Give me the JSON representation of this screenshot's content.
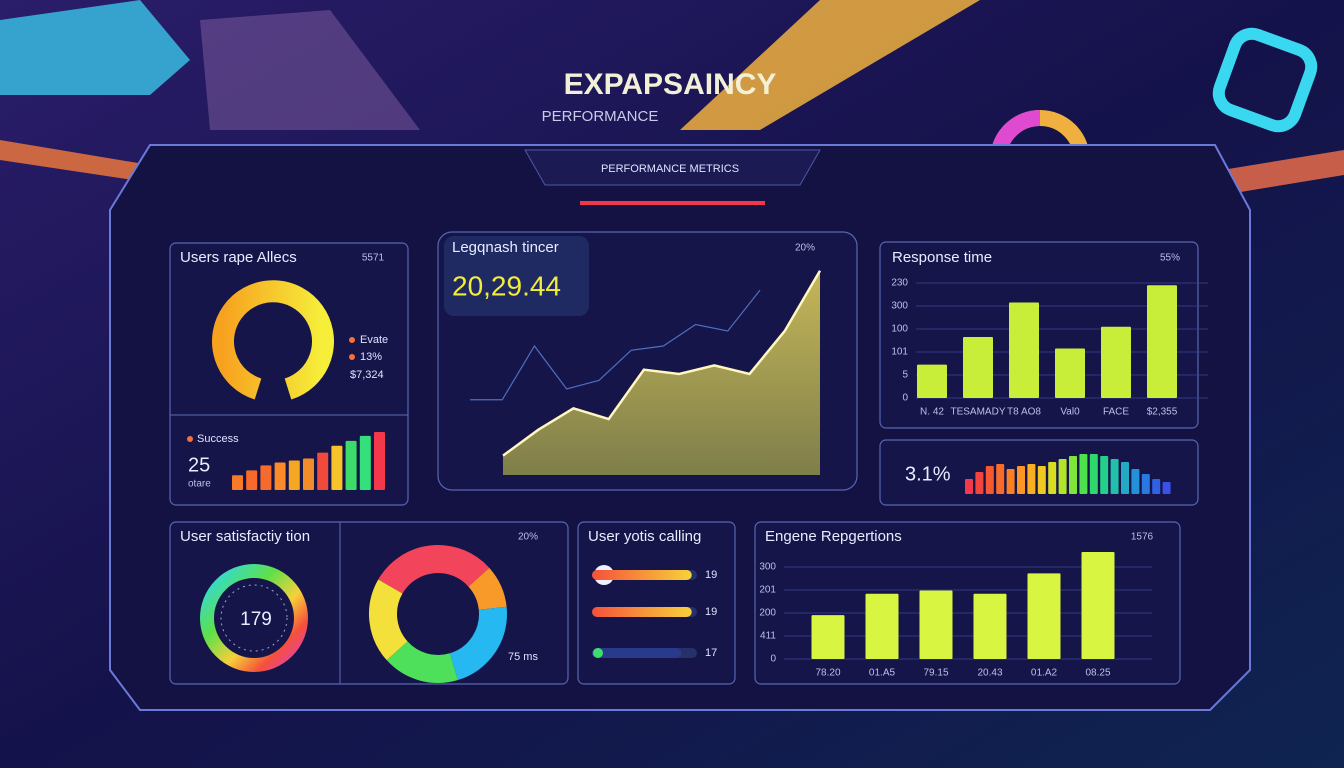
{
  "header": {
    "title": "EXPAPSAINCY",
    "subtitle": "PERFORMANCE",
    "tab": "PERFORMANCE METRICS"
  },
  "users_panel": {
    "title": "Users rape Allecs",
    "badge": "5571",
    "legend": [
      "Evate",
      "13%",
      "$7,324"
    ],
    "success_label": "Success",
    "success_value": "25",
    "success_caption": "otare",
    "bars": {
      "type": "bar",
      "values": [
        15,
        20,
        25,
        28,
        30,
        32,
        38,
        45,
        50,
        55,
        59
      ],
      "colors": [
        "#f57a2a",
        "#f8692a",
        "#f66a2c",
        "#fb8a2a",
        "#f5a623",
        "#f28c28",
        "#f04a3a",
        "#f7c32a",
        "#3ddc6a",
        "#34e07a",
        "#f2384a"
      ],
      "ylim": [
        0,
        60
      ]
    }
  },
  "trend_panel": {
    "title": "Legqnash tincer",
    "value": "20,29.44",
    "badge": "20%",
    "chart": {
      "type": "area",
      "ylim": [
        0,
        100
      ],
      "series": [
        {
          "color": "#d8c85a",
          "values": [
            9,
            21,
            31,
            26,
            49,
            47,
            51,
            47,
            67,
            95
          ]
        },
        {
          "color": "#4e6fc0",
          "values": [
            35,
            35,
            60,
            40,
            44,
            58,
            60,
            70,
            67,
            86
          ]
        }
      ]
    }
  },
  "response_panel": {
    "title": "Response time",
    "badge": "55%",
    "y_labels": [
      "230",
      "300",
      "100",
      "101",
      "5",
      "0"
    ],
    "chart": {
      "type": "bar",
      "categories": [
        "N. 42",
        "TESAMADY",
        "T8 AO8",
        "Val0",
        "FACE",
        "$2,355"
      ],
      "values": [
        29,
        53,
        83,
        43,
        62,
        98
      ],
      "color": "#c8ee3a",
      "ylim": [
        0,
        100
      ]
    }
  },
  "spark_panel": {
    "value": "3.1%",
    "chart": {
      "type": "bar",
      "values": [
        15,
        22,
        28,
        30,
        25,
        28,
        30,
        28,
        32,
        35,
        38,
        40,
        40,
        38,
        35,
        32,
        25,
        20,
        15,
        12
      ],
      "colors": [
        "#f23a4a",
        "#f5443e",
        "#f7582f",
        "#f96b2a",
        "#fa8026",
        "#fb9524",
        "#f8b022",
        "#f1c821",
        "#d8dc22",
        "#b2e52a",
        "#7fe53a",
        "#4fe04e",
        "#2fd86a",
        "#24cf8a",
        "#22c0aa",
        "#22aac4",
        "#2490d8",
        "#2a78e0",
        "#3060e4",
        "#3a50e6"
      ],
      "ylim": [
        0,
        40
      ]
    }
  },
  "satisfaction_panel": {
    "title": "User satisfactiy tion",
    "badge": "20%",
    "gauge_value": "179",
    "donut_caption": "75 ms",
    "donut": {
      "type": "pie",
      "values": [
        30,
        10,
        22,
        18,
        20
      ],
      "colors": [
        "#f2445a",
        "#f79a2a",
        "#26b8f0",
        "#4ee05a",
        "#f3e03a"
      ]
    }
  },
  "calling_panel": {
    "title": "User yotis calling",
    "chart": {
      "type": "bar",
      "values": [
        19,
        19,
        17
      ],
      "xlim": [
        0,
        20
      ]
    }
  },
  "engine_panel": {
    "title": "Engene Repgertions",
    "badge": "1576",
    "y_labels": [
      "300",
      "201",
      "200",
      "411",
      "0"
    ],
    "chart": {
      "type": "bar",
      "categories": [
        "78.20",
        "01.A5",
        "79.15",
        "20.43",
        "01.A2",
        "08.25"
      ],
      "values": [
        41,
        61,
        64,
        61,
        80,
        100
      ],
      "color": "#d8f542",
      "ylim": [
        0,
        100
      ]
    }
  }
}
